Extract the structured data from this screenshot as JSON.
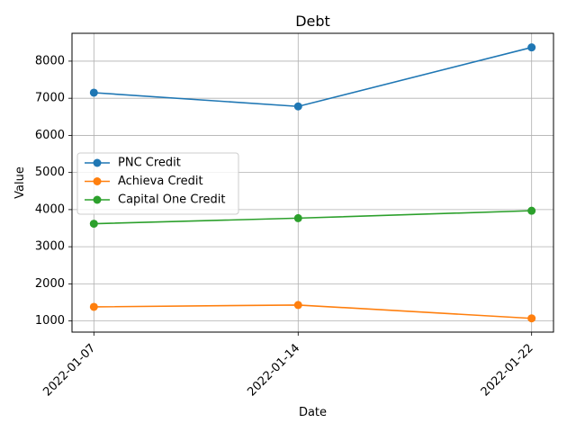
{
  "chart_data": {
    "type": "line",
    "title": "Debt",
    "xlabel": "Date",
    "ylabel": "Value",
    "categories": [
      "2022-01-07",
      "2022-01-14",
      "2022-01-22"
    ],
    "x_dates": [
      "2022-01-07",
      "2022-01-14",
      "2022-01-22"
    ],
    "ylim": [
      700,
      8750
    ],
    "yticks": [
      1000,
      2000,
      3000,
      4000,
      5000,
      6000,
      7000,
      8000
    ],
    "grid": true,
    "legend_position": "center-left",
    "series": [
      {
        "name": "PNC Credit",
        "color": "#1f77b4",
        "values": [
          7150,
          6780,
          8370
        ]
      },
      {
        "name": "Achieva Credit",
        "color": "#ff7f0e",
        "values": [
          1380,
          1430,
          1070
        ]
      },
      {
        "name": "Capital One Credit",
        "color": "#2ca02c",
        "values": [
          3620,
          3770,
          3970
        ]
      }
    ]
  }
}
